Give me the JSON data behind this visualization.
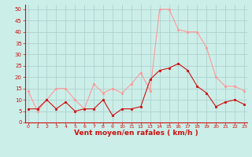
{
  "x": [
    0,
    1,
    2,
    3,
    4,
    5,
    6,
    7,
    8,
    9,
    10,
    11,
    12,
    13,
    14,
    15,
    16,
    17,
    18,
    19,
    20,
    21,
    22,
    23
  ],
  "wind_avg": [
    6,
    6,
    10,
    6,
    9,
    5,
    6,
    6,
    10,
    3,
    6,
    6,
    7,
    19,
    23,
    24,
    26,
    23,
    16,
    13,
    7,
    9,
    10,
    8
  ],
  "wind_gust": [
    14,
    5,
    10,
    15,
    15,
    10,
    6,
    17,
    13,
    15,
    13,
    17,
    22,
    14,
    50,
    50,
    41,
    40,
    40,
    33,
    20,
    16,
    16,
    14
  ],
  "bg_color": "#cceee8",
  "grid_color": "#aacccc",
  "line_avg_color": "#cc1111",
  "line_gust_color": "#ff9999",
  "marker_avg_color": "#cc1111",
  "marker_gust_color": "#ff9999",
  "xlabel": "Vent moyen/en rafales ( km/h )",
  "tick_color": "#cc1111",
  "spine_color": "#cc1111",
  "xlabel_color": "#cc1111",
  "ylim": [
    0,
    52
  ],
  "yticks": [
    0,
    5,
    10,
    15,
    20,
    25,
    30,
    35,
    40,
    45,
    50
  ]
}
